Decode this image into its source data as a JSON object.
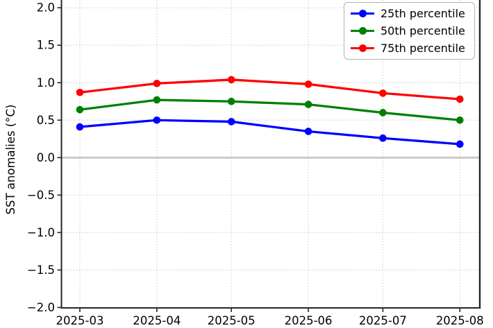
{
  "figure": {
    "background": "#ffffff"
  },
  "colors": {
    "blue": "#0000ff",
    "green": "#008000",
    "red": "#ff0000",
    "grid": "#c9c9c9",
    "zero_line": "#c8c8c8",
    "spine": "#262626",
    "text": "#000000",
    "legend_border": "#b4b4b4"
  },
  "chart_data": {
    "type": "line",
    "title": "",
    "xlabel": "",
    "ylabel": "SST anomalies (°C)",
    "x": [
      "2025-03",
      "2025-04",
      "2025-05",
      "2025-06",
      "2025-07",
      "2025-08"
    ],
    "series": [
      {
        "name": "25th percentile",
        "color": "#0000ff",
        "marker": "circle",
        "values": [
          0.41,
          0.5,
          0.48,
          0.35,
          0.26,
          0.18
        ]
      },
      {
        "name": "50th percentile",
        "color": "#008000",
        "marker": "circle",
        "values": [
          0.64,
          0.77,
          0.75,
          0.71,
          0.6,
          0.5
        ]
      },
      {
        "name": "75th percentile",
        "color": "#ff0000",
        "marker": "circle",
        "values": [
          0.87,
          0.99,
          1.04,
          0.98,
          0.86,
          0.78
        ]
      }
    ],
    "ylim": [
      -2.0,
      2.0
    ],
    "ytick_step": 0.5,
    "yticks": [
      "2.0",
      "1.5",
      "1.0",
      "0.5",
      "0.0",
      "−0.5",
      "−1.0",
      "−1.5",
      "−2.0"
    ],
    "grid": true,
    "grid_style": "dotted",
    "zero_line": true,
    "legend_position": "upper right"
  }
}
